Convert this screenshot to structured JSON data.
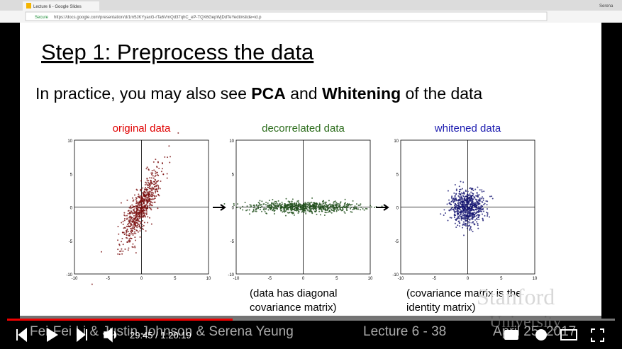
{
  "browser": {
    "tab_title": "Lecture 6 - Google Slides",
    "user": "Serena",
    "secure": "Secure",
    "url": "https://docs.google.com/presentation/d/1m5JKYyaxG-rTa6VmQd37qhC_eP-TQX6GepWjDdTeYedit#slide=id.p"
  },
  "slide": {
    "title": "Step 1: Preprocess the data",
    "subtitle": [
      "In practice, you may also see ",
      "PCA",
      " and ",
      "Whitening",
      " of the data"
    ],
    "plots": [
      {
        "title": "original data",
        "y_ticks": [
          "10",
          "5",
          "0",
          "-5",
          "-10"
        ],
        "x_ticks": [
          "-10",
          "-5",
          "0",
          "5",
          "10"
        ]
      },
      {
        "title": "decorrelated data",
        "y_ticks": [
          "10",
          "5",
          "0",
          "-5",
          "-10"
        ],
        "x_ticks": [
          "-10",
          "-5",
          "0",
          "5",
          "10"
        ]
      },
      {
        "title": "whitened data",
        "y_ticks": [
          "10",
          "5",
          "0",
          "-5",
          "-10"
        ],
        "x_ticks": [
          "-10",
          "-5",
          "0",
          "5",
          "10"
        ]
      }
    ],
    "captions": [
      [
        "(data has diagonal",
        "covariance matrix)"
      ],
      [
        "(covariance matrix is the",
        "identity matrix)"
      ]
    ],
    "footer_left": "Fei-Fei Li & Justin Johnson & Serena Yeung",
    "footer_center": "Lecture 6 - 38",
    "footer_right": "April 25, 2017",
    "watermark": [
      "Stanford",
      "University"
    ]
  },
  "player": {
    "time": "29:45 / 1:20:19"
  }
}
